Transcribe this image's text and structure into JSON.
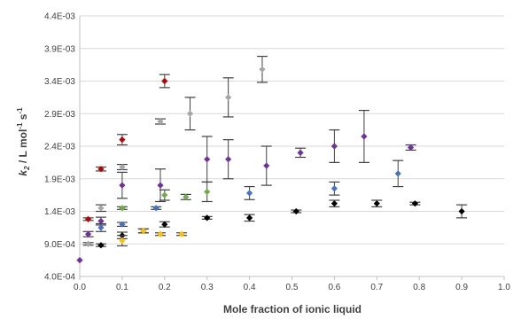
{
  "chart_data": {
    "type": "scatter",
    "title": "",
    "xlabel": "Mole fraction of ionic liquid",
    "ylabel": {
      "k": "k",
      "sub": "2",
      "rest1": " / L mol",
      "sup1": "-1",
      "rest2": " s",
      "sup2": "-1"
    },
    "xlim": [
      0,
      1
    ],
    "ylim": [
      0.0004,
      0.0044
    ],
    "x_ticks": [
      "0.0",
      "0.1",
      "0.2",
      "0.3",
      "0.4",
      "0.5",
      "0.6",
      "0.7",
      "0.8",
      "0.9",
      "1.0"
    ],
    "y_ticks": [
      "4.0E-04",
      "9.0E-04",
      "1.4E-03",
      "1.9E-03",
      "2.4E-03",
      "2.9E-03",
      "3.4E-03",
      "3.9E-03",
      "4.4E-03"
    ],
    "grid": "horizontal",
    "legend": "none",
    "series": [
      {
        "color": "#7030a0",
        "points": [
          {
            "x": 0.0,
            "y": 0.00065,
            "err": 0
          },
          {
            "x": 0.02,
            "y": 0.00105,
            "err": 4e-05
          },
          {
            "x": 0.05,
            "y": 0.00125,
            "err": 6e-05
          },
          {
            "x": 0.1,
            "y": 0.0018,
            "err": 0.0002
          },
          {
            "x": 0.19,
            "y": 0.0018,
            "err": 0.00025
          },
          {
            "x": 0.3,
            "y": 0.0022,
            "err": 0.00035
          },
          {
            "x": 0.35,
            "y": 0.0022,
            "err": 0.0003
          },
          {
            "x": 0.44,
            "y": 0.0021,
            "err": 0.0003
          },
          {
            "x": 0.52,
            "y": 0.0023,
            "err": 7e-05
          },
          {
            "x": 0.6,
            "y": 0.0024,
            "err": 0.00025
          },
          {
            "x": 0.67,
            "y": 0.00255,
            "err": 0.0004
          },
          {
            "x": 0.78,
            "y": 0.00238,
            "err": 4e-05
          }
        ]
      },
      {
        "color": "#000000",
        "points": [
          {
            "x": 0.05,
            "y": 0.00088,
            "err": 2e-05
          },
          {
            "x": 0.1,
            "y": 0.00103,
            "err": 5e-05
          },
          {
            "x": 0.15,
            "y": 0.0011,
            "err": 3e-05
          },
          {
            "x": 0.2,
            "y": 0.0012,
            "err": 4e-05
          },
          {
            "x": 0.3,
            "y": 0.0013,
            "err": 2e-05
          },
          {
            "x": 0.4,
            "y": 0.0013,
            "err": 5e-05
          },
          {
            "x": 0.51,
            "y": 0.0014,
            "err": 2e-05
          },
          {
            "x": 0.6,
            "y": 0.00152,
            "err": 5e-05
          },
          {
            "x": 0.7,
            "y": 0.00152,
            "err": 5e-05
          },
          {
            "x": 0.79,
            "y": 0.00152,
            "err": 2e-05
          },
          {
            "x": 0.9,
            "y": 0.0014,
            "err": 0.0001
          }
        ]
      },
      {
        "color": "#a6a6a6",
        "points": [
          {
            "x": 0.02,
            "y": 0.0009,
            "err": 2e-05
          },
          {
            "x": 0.05,
            "y": 0.00145,
            "err": 5e-05
          },
          {
            "x": 0.1,
            "y": 0.00208,
            "err": 4e-05
          },
          {
            "x": 0.19,
            "y": 0.00278,
            "err": 4e-05
          },
          {
            "x": 0.26,
            "y": 0.0029,
            "err": 0.00025
          },
          {
            "x": 0.35,
            "y": 0.00315,
            "err": 0.0003
          },
          {
            "x": 0.43,
            "y": 0.00358,
            "err": 0.0002
          }
        ]
      },
      {
        "color": "#c00000",
        "points": [
          {
            "x": 0.02,
            "y": 0.00128,
            "err": 2e-05
          },
          {
            "x": 0.05,
            "y": 0.00205,
            "err": 3e-05
          },
          {
            "x": 0.1,
            "y": 0.0025,
            "err": 8e-05
          },
          {
            "x": 0.2,
            "y": 0.0034,
            "err": 0.0001
          }
        ]
      },
      {
        "color": "#4472c4",
        "points": [
          {
            "x": 0.05,
            "y": 0.00115,
            "err": 6e-05
          },
          {
            "x": 0.1,
            "y": 0.0012,
            "err": 3e-05
          },
          {
            "x": 0.18,
            "y": 0.00145,
            "err": 2e-05
          },
          {
            "x": 0.4,
            "y": 0.00168,
            "err": 0.0001
          },
          {
            "x": 0.6,
            "y": 0.00175,
            "err": 0.0001
          },
          {
            "x": 0.75,
            "y": 0.00198,
            "err": 0.0002
          }
        ]
      },
      {
        "color": "#70ad47",
        "points": [
          {
            "x": 0.1,
            "y": 0.00145,
            "err": 2e-05
          },
          {
            "x": 0.2,
            "y": 0.00165,
            "err": 8e-05
          },
          {
            "x": 0.25,
            "y": 0.00162,
            "err": 4e-05
          },
          {
            "x": 0.3,
            "y": 0.0017,
            "err": 0.00015
          }
        ]
      },
      {
        "color": "#ffc000",
        "points": [
          {
            "x": 0.1,
            "y": 0.00095,
            "err": 8e-05
          },
          {
            "x": 0.15,
            "y": 0.0011,
            "err": 3e-05
          },
          {
            "x": 0.19,
            "y": 0.00105,
            "err": 2e-05
          },
          {
            "x": 0.24,
            "y": 0.00105,
            "err": 2e-05
          }
        ]
      }
    ]
  }
}
